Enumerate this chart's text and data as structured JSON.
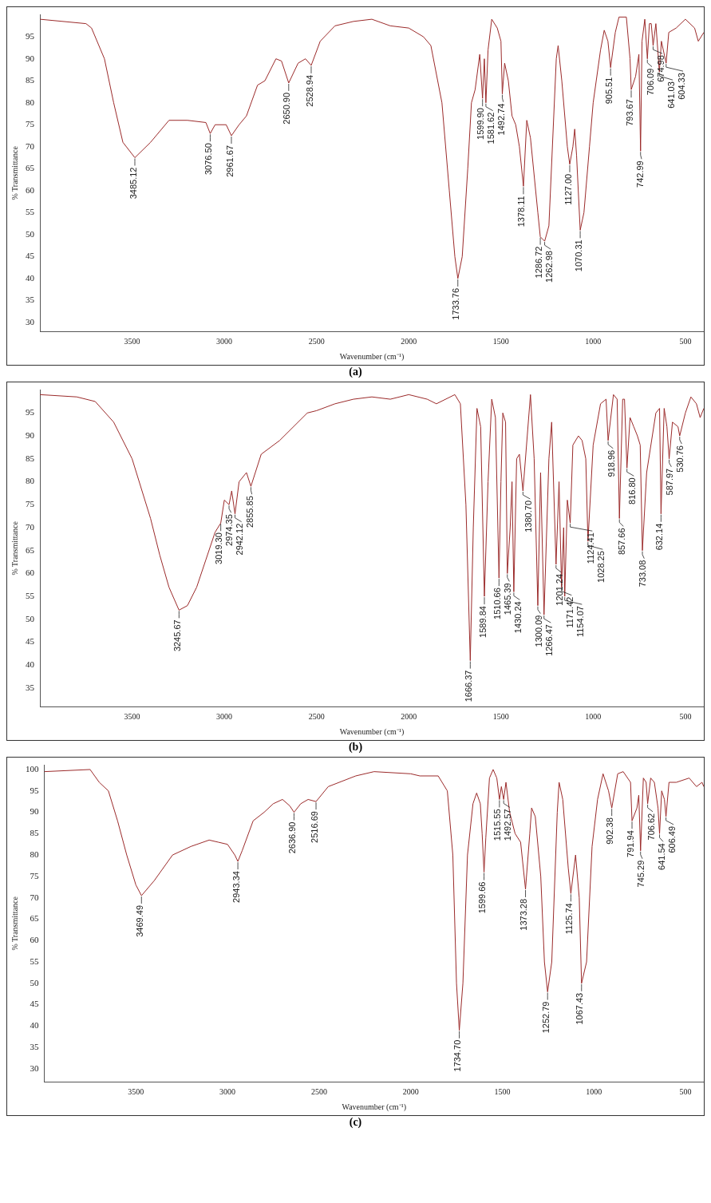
{
  "chart_data": [
    {
      "type": "line",
      "title": "(a)",
      "xlabel": "Wavenumber (cm⁻¹)",
      "ylabel": "% Transmittance",
      "xlim": [
        4000,
        400
      ],
      "xticks": [
        3500,
        3000,
        2500,
        2000,
        1500,
        1000,
        500
      ],
      "ylim": [
        28,
        100
      ],
      "yticks": [
        30,
        35,
        40,
        45,
        50,
        55,
        60,
        65,
        70,
        75,
        80,
        85,
        90,
        95
      ],
      "legend": false,
      "marker": "none",
      "series": [
        {
          "color": "#9b2a2a",
          "x": [
            4000,
            3750,
            3720,
            3650,
            3600,
            3550,
            3485.12,
            3400,
            3300,
            3200,
            3100,
            3076.5,
            3050,
            2990,
            2961.67,
            2920,
            2880,
            2820,
            2780,
            2720,
            2690,
            2650.9,
            2600,
            2560,
            2528.94,
            2480,
            2400,
            2300,
            2200,
            2100,
            2000,
            1920,
            1880,
            1820,
            1780,
            1750,
            1733.76,
            1710,
            1680,
            1660,
            1640,
            1615,
            1599.9,
            1590,
            1581.62,
            1570,
            1550,
            1520,
            1500,
            1492.74,
            1480,
            1460,
            1440,
            1420,
            1400,
            1378.11,
            1360,
            1340,
            1300,
            1286.72,
            1262.98,
            1240,
            1200,
            1190,
            1170,
            1140,
            1127,
            1110,
            1100,
            1090,
            1070.31,
            1050,
            1020,
            1000,
            960,
            940,
            920,
            905.51,
            880,
            860,
            820,
            800,
            793.67,
            770,
            752,
            742.99,
            735,
            720,
            706.09,
            695,
            685,
            674.98,
            660,
            641.03,
            630,
            604.33,
            590,
            550,
            500,
            450,
            430,
            400
          ],
          "values": [
            99,
            98,
            97,
            90,
            80,
            71,
            67.5,
            71,
            76,
            76,
            75.5,
            73,
            75,
            75,
            72.5,
            75,
            77,
            84,
            85,
            90,
            89.5,
            84.5,
            89,
            90,
            88.5,
            94,
            97.5,
            98.5,
            99,
            97.5,
            97,
            95,
            93,
            80,
            60,
            45,
            40,
            45,
            65,
            80,
            83,
            91,
            81,
            90,
            80,
            92,
            99,
            97,
            94,
            82,
            89,
            85,
            77,
            75,
            70,
            61,
            76,
            72,
            55,
            49.5,
            48.5,
            52,
            90,
            93,
            85,
            70,
            66,
            70,
            74,
            68,
            51,
            55,
            70,
            80,
            92,
            96.5,
            94,
            88,
            96,
            99.5,
            99.5,
            90,
            83,
            86,
            91,
            69,
            94,
            99,
            90,
            98,
            98,
            93,
            98,
            87,
            94,
            89,
            96,
            97,
            99,
            97,
            94,
            96
          ]
        }
      ],
      "annotations": [
        {
          "text": "3485.12",
          "x": 3485.12,
          "y": 67.5
        },
        {
          "text": "3076.50",
          "x": 3076.5,
          "y": 73
        },
        {
          "text": "2961.67",
          "x": 2961.67,
          "y": 72.5
        },
        {
          "text": "2650.90",
          "x": 2650.9,
          "y": 84.5
        },
        {
          "text": "2528.94",
          "x": 2528.94,
          "y": 88.5
        },
        {
          "text": "1733.76",
          "x": 1733.76,
          "y": 40
        },
        {
          "text": "1599.90",
          "x": 1599.9,
          "y": 81
        },
        {
          "text": "1581.62",
          "x": 1581.62,
          "y": 80
        },
        {
          "text": "1492.74",
          "x": 1492.74,
          "y": 82
        },
        {
          "text": "1378.11",
          "x": 1378.11,
          "y": 61
        },
        {
          "text": "1286.72",
          "x": 1286.72,
          "y": 49.5
        },
        {
          "text": "1262.98",
          "x": 1262.98,
          "y": 48.5
        },
        {
          "text": "1127.00",
          "x": 1127,
          "y": 66
        },
        {
          "text": "1070.31",
          "x": 1070.31,
          "y": 51
        },
        {
          "text": "905.51",
          "x": 905.51,
          "y": 88
        },
        {
          "text": "793.67",
          "x": 793.67,
          "y": 83
        },
        {
          "text": "742.99",
          "x": 742.99,
          "y": 69
        },
        {
          "text": "706.09",
          "x": 706.09,
          "y": 90
        },
        {
          "text": "674.98",
          "x": 674.98,
          "y": 93
        },
        {
          "text": "641.03",
          "x": 641.03,
          "y": 87
        },
        {
          "text": "604.33",
          "x": 604.33,
          "y": 89
        }
      ]
    },
    {
      "type": "line",
      "title": "(b)",
      "xlabel": "Wavenumber (cm⁻¹)",
      "ylabel": "% Transmittance",
      "xlim": [
        4000,
        400
      ],
      "xticks": [
        3500,
        3000,
        2500,
        2000,
        1500,
        1000,
        500
      ],
      "ylim": [
        31,
        100
      ],
      "yticks": [
        35,
        40,
        45,
        50,
        55,
        60,
        65,
        70,
        75,
        80,
        85,
        90,
        95
      ],
      "legend": false,
      "marker": "none",
      "series": [
        {
          "color": "#9b2a2a",
          "x": [
            4000,
            3800,
            3700,
            3600,
            3500,
            3400,
            3350,
            3300,
            3245.67,
            3200,
            3150,
            3100,
            3050,
            3019.3,
            3000,
            2974.35,
            2960,
            2942.12,
            2920,
            2880,
            2855.85,
            2800,
            2700,
            2650,
            2550,
            2500,
            2400,
            2300,
            2200,
            2100,
            2000,
            1900,
            1850,
            1750,
            1720,
            1690,
            1666.37,
            1650,
            1630,
            1610,
            1589.84,
            1570,
            1550,
            1530,
            1510.66,
            1500,
            1490,
            1475,
            1465.39,
            1450,
            1440,
            1430.24,
            1415,
            1400,
            1380.7,
            1340,
            1320,
            1300.09,
            1285,
            1266.47,
            1240,
            1225,
            1201.24,
            1185,
            1171.42,
            1160,
            1154.07,
            1140,
            1124.41,
            1110,
            1080,
            1060,
            1040,
            1028.25,
            1000,
            960,
            930,
            918.96,
            890,
            870,
            857.66,
            840,
            830,
            816.8,
            800,
            780,
            760,
            745,
            733.08,
            710,
            660,
            640,
            632.14,
            615,
            600,
            587.97,
            570,
            540,
            530.76,
            500,
            470,
            440,
            420,
            400
          ],
          "values": [
            99,
            98.5,
            97.5,
            93,
            85,
            72,
            64,
            57,
            52,
            53,
            57,
            63,
            69,
            71,
            76,
            75,
            78,
            73,
            80,
            82,
            79,
            86,
            89,
            91,
            95,
            95.5,
            97,
            98,
            98.5,
            98,
            99,
            98,
            97,
            99,
            97,
            75,
            41,
            70,
            96,
            92,
            55,
            80,
            98,
            94,
            59,
            80,
            95,
            93,
            60,
            70,
            80,
            56,
            85,
            86,
            78,
            99,
            85,
            53,
            82,
            51,
            85,
            93,
            62,
            80,
            57,
            70,
            55,
            76,
            71,
            88,
            90,
            89,
            85,
            67,
            88,
            97,
            98,
            89,
            99,
            98,
            72,
            98,
            98,
            83,
            94,
            92,
            90,
            88,
            65,
            82,
            95,
            96,
            73,
            96,
            92,
            85,
            93,
            92,
            90,
            95,
            98.5,
            97,
            94,
            96
          ]
        }
      ],
      "annotations": [
        {
          "text": "3245.67",
          "x": 3245.67,
          "y": 52
        },
        {
          "text": "3019.30",
          "x": 3019.3,
          "y": 71
        },
        {
          "text": "2974.35",
          "x": 2974.35,
          "y": 75
        },
        {
          "text": "2942.12",
          "x": 2942.12,
          "y": 73
        },
        {
          "text": "2855.85",
          "x": 2855.85,
          "y": 79
        },
        {
          "text": "1666.37",
          "x": 1666.37,
          "y": 41
        },
        {
          "text": "1589.84",
          "x": 1589.84,
          "y": 55
        },
        {
          "text": "1510.66",
          "x": 1510.66,
          "y": 59
        },
        {
          "text": "1465.39",
          "x": 1465.39,
          "y": 60
        },
        {
          "text": "1430.24",
          "x": 1430.24,
          "y": 56
        },
        {
          "text": "1380.70",
          "x": 1380.7,
          "y": 78
        },
        {
          "text": "1300.09",
          "x": 1300.09,
          "y": 53
        },
        {
          "text": "1266.47",
          "x": 1266.47,
          "y": 51
        },
        {
          "text": "1201.24",
          "x": 1201.24,
          "y": 62
        },
        {
          "text": "1171.42",
          "x": 1171.42,
          "y": 57
        },
        {
          "text": "1154.07",
          "x": 1154.07,
          "y": 55
        },
        {
          "text": "1124.41",
          "x": 1124.41,
          "y": 71
        },
        {
          "text": "1028.25",
          "x": 1028.25,
          "y": 67
        },
        {
          "text": "918.96",
          "x": 918.96,
          "y": 89
        },
        {
          "text": "857.66",
          "x": 857.66,
          "y": 72
        },
        {
          "text": "816.80",
          "x": 816.8,
          "y": 83
        },
        {
          "text": "733.08",
          "x": 733.08,
          "y": 65
        },
        {
          "text": "632.14",
          "x": 632.14,
          "y": 73
        },
        {
          "text": "587.97",
          "x": 587.97,
          "y": 85
        },
        {
          "text": "530.76",
          "x": 530.76,
          "y": 90
        }
      ]
    },
    {
      "type": "line",
      "title": "(c)",
      "xlabel": "Wavenumber (cm⁻¹)",
      "ylabel": "% Transmittance",
      "xlim": [
        4000,
        400
      ],
      "xticks": [
        3500,
        3000,
        2500,
        2000,
        1500,
        1000,
        500
      ],
      "ylim": [
        27,
        101
      ],
      "yticks": [
        30,
        35,
        40,
        45,
        50,
        55,
        60,
        65,
        70,
        75,
        80,
        85,
        90,
        95,
        100
      ],
      "legend": false,
      "marker": "none",
      "series": [
        {
          "color": "#9b2a2a",
          "x": [
            4000,
            3750,
            3700,
            3650,
            3600,
            3550,
            3500,
            3469.49,
            3400,
            3300,
            3200,
            3100,
            3050,
            3000,
            2960,
            2943.34,
            2920,
            2860,
            2800,
            2750,
            2700,
            2660,
            2636.9,
            2600,
            2560,
            2516.69,
            2450,
            2300,
            2200,
            2000,
            1950,
            1850,
            1800,
            1770,
            1750,
            1734.7,
            1715,
            1690,
            1660,
            1640,
            1620,
            1610,
            1599.66,
            1590,
            1570,
            1550,
            1530,
            1515.55,
            1505,
            1492.57,
            1480,
            1460,
            1430,
            1400,
            1373.28,
            1350,
            1340,
            1320,
            1290,
            1270,
            1252.79,
            1230,
            1200,
            1190,
            1170,
            1140,
            1125.74,
            1100,
            1080,
            1067.43,
            1040,
            1010,
            980,
            950,
            920,
            902.38,
            870,
            840,
            800,
            791.94,
            765,
            755,
            745.29,
            730,
            715,
            706.62,
            690,
            670,
            650,
            641.54,
            630,
            615,
            606.49,
            590,
            550,
            480,
            440,
            410,
            400
          ],
          "values": [
            99.5,
            100,
            97,
            95,
            88,
            80,
            73,
            70.5,
            74,
            80,
            82,
            83.5,
            83,
            82.5,
            80,
            78.5,
            81,
            88,
            90,
            92,
            93,
            91.5,
            90,
            92,
            93,
            92.5,
            96,
            98.5,
            99.5,
            99,
            98.5,
            98.5,
            95,
            80,
            50,
            39,
            50,
            80,
            92,
            94.5,
            92,
            85,
            76,
            84,
            98,
            100,
            98,
            93,
            96,
            93,
            97,
            90,
            85,
            83,
            72,
            85,
            91,
            89,
            75,
            55,
            48,
            55,
            90,
            97,
            93,
            77,
            71,
            80,
            70,
            50,
            55,
            82,
            93,
            99,
            95,
            91,
            99,
            99.5,
            97,
            88,
            91,
            94,
            81,
            98,
            97,
            92,
            98,
            97,
            91,
            85,
            95,
            93,
            89,
            97,
            97,
            98,
            96,
            97,
            96
          ]
        }
      ],
      "annotations": [
        {
          "text": "3469.49",
          "x": 3469.49,
          "y": 70.5
        },
        {
          "text": "2943.34",
          "x": 2943.34,
          "y": 78.5
        },
        {
          "text": "2636.90",
          "x": 2636.9,
          "y": 90
        },
        {
          "text": "2516.69",
          "x": 2516.69,
          "y": 92.5
        },
        {
          "text": "1734.70",
          "x": 1734.7,
          "y": 39
        },
        {
          "text": "1599.66",
          "x": 1599.66,
          "y": 76
        },
        {
          "text": "1515.55",
          "x": 1515.55,
          "y": 93
        },
        {
          "text": "1492.57",
          "x": 1492.57,
          "y": 93
        },
        {
          "text": "1373.28",
          "x": 1373.28,
          "y": 72
        },
        {
          "text": "1252.79",
          "x": 1252.79,
          "y": 48
        },
        {
          "text": "1125.74",
          "x": 1125.74,
          "y": 71
        },
        {
          "text": "1067.43",
          "x": 1067.43,
          "y": 50
        },
        {
          "text": "902.38",
          "x": 902.38,
          "y": 91
        },
        {
          "text": "791.94",
          "x": 791.94,
          "y": 88
        },
        {
          "text": "745.29",
          "x": 745.29,
          "y": 81
        },
        {
          "text": "706.62",
          "x": 706.62,
          "y": 92
        },
        {
          "text": "641.54",
          "x": 641.54,
          "y": 85
        },
        {
          "text": "606.49",
          "x": 606.49,
          "y": 89
        }
      ]
    }
  ]
}
